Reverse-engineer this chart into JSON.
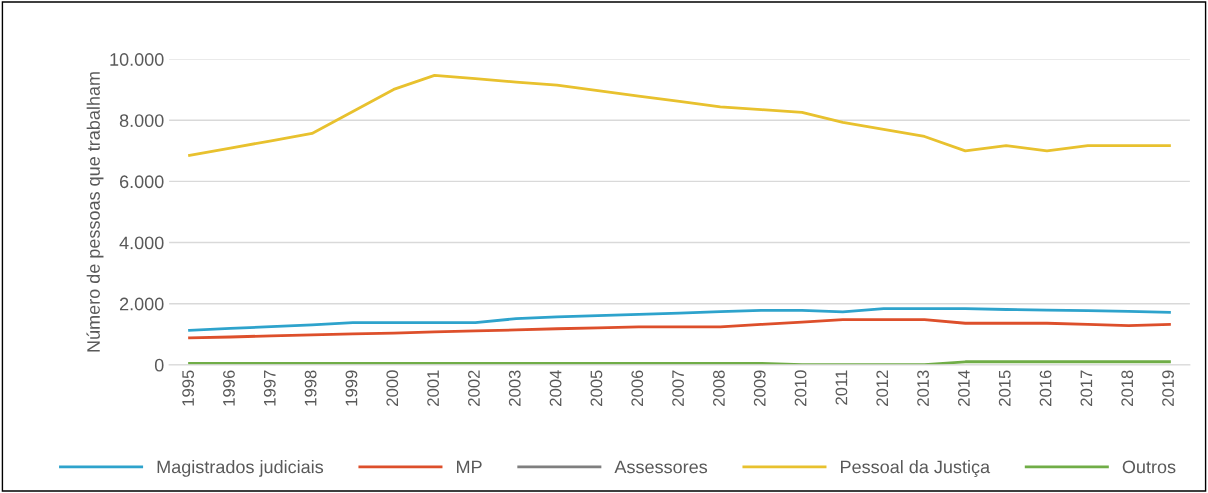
{
  "chart_data": {
    "type": "line",
    "ylabel": "Número de pessoas que trabalham",
    "categories": [
      "1995",
      "1996",
      "1997",
      "1998",
      "1999",
      "2000",
      "2001",
      "2002",
      "2003",
      "2004",
      "2005",
      "2006",
      "2007",
      "2008",
      "2009",
      "2010",
      "2011",
      "2012",
      "2013",
      "2014",
      "2015",
      "2016",
      "2017",
      "2018",
      "2019"
    ],
    "series": [
      {
        "name": "Magistrados judiciais",
        "color": "#2ea3cc",
        "values": [
          1130,
          1190,
          1250,
          1310,
          1380,
          1380,
          1380,
          1380,
          1510,
          1570,
          1610,
          1650,
          1690,
          1740,
          1780,
          1780,
          1730,
          1840,
          1840,
          1840,
          1810,
          1790,
          1770,
          1750,
          1720
        ]
      },
      {
        "name": "MP",
        "color": "#dd4f2b",
        "values": [
          880,
          910,
          950,
          980,
          1010,
          1040,
          1080,
          1110,
          1140,
          1180,
          1210,
          1240,
          1240,
          1240,
          1320,
          1400,
          1480,
          1480,
          1480,
          1360,
          1360,
          1360,
          1320,
          1280,
          1320
        ]
      },
      {
        "name": "Assessores",
        "color": "#7f7f7f",
        "values": [
          null,
          null,
          null,
          null,
          null,
          null,
          null,
          null,
          null,
          null,
          null,
          null,
          null,
          null,
          null,
          null,
          null,
          null,
          null,
          null,
          null,
          null,
          null,
          null,
          null
        ]
      },
      {
        "name": "Pessoal da Justiça",
        "color": "#e8c12e",
        "values": [
          6850,
          7090,
          7330,
          7570,
          8290,
          9010,
          9470,
          9360,
          9250,
          9150,
          8970,
          8790,
          8620,
          8440,
          8350,
          8260,
          7930,
          7700,
          7470,
          7000,
          7170,
          7000,
          7170,
          7170,
          7170
        ]
      },
      {
        "name": "Outros",
        "color": "#70ad47",
        "values": [
          50,
          50,
          50,
          50,
          50,
          50,
          50,
          50,
          50,
          50,
          50,
          50,
          50,
          50,
          50,
          10,
          10,
          10,
          10,
          100,
          100,
          100,
          100,
          100,
          100
        ]
      }
    ],
    "ylim": [
      0,
      10000
    ],
    "yticks": [
      0,
      {
        "value": 2000,
        "label": "2.000"
      },
      {
        "value": 4000,
        "label": "4.000"
      },
      {
        "value": 6000,
        "label": "6.000"
      },
      {
        "value": 8000,
        "label": "8.000"
      },
      {
        "value": 10000,
        "label": "10.000"
      }
    ],
    "grid": "y",
    "legend": "bottom",
    "line_style": "solid"
  }
}
